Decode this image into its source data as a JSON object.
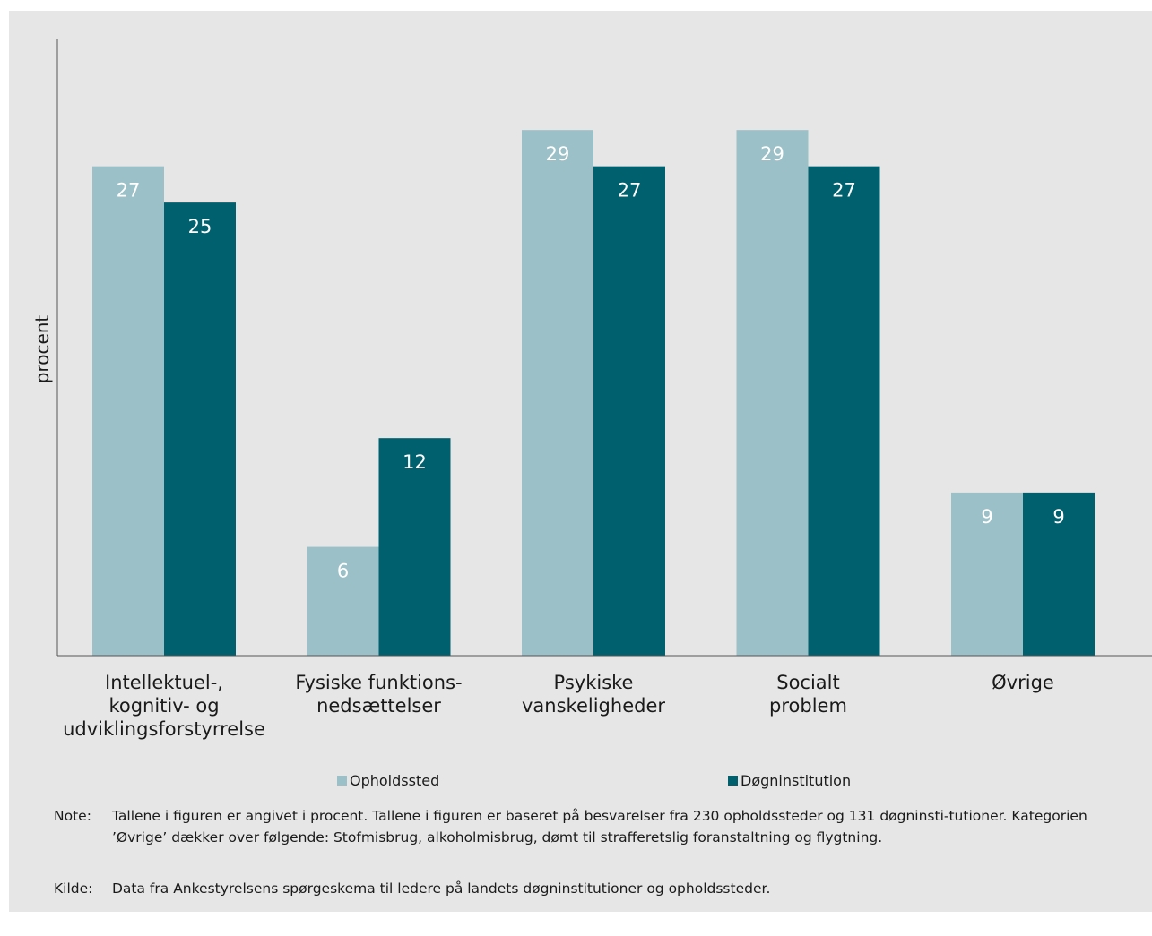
{
  "chart_data": {
    "type": "bar",
    "ylabel": "procent",
    "categories": [
      [
        "Intellektuel-,",
        "kognitiv- og",
        "udviklingsforstyrrelse"
      ],
      [
        "Fysiske funktions-",
        "nedsættelser"
      ],
      [
        "Psykiske",
        "vanskeligheder"
      ],
      [
        "Socialt",
        "problem"
      ],
      [
        "Øvrige"
      ]
    ],
    "series": [
      {
        "name": "Opholdssted",
        "color": "#9bc0c7",
        "values": [
          27,
          6,
          29,
          29,
          9
        ]
      },
      {
        "name": "Døgninstitution",
        "color": "#00606e",
        "values": [
          25,
          12,
          27,
          27,
          9
        ]
      }
    ],
    "grid": false,
    "legend": "bottom"
  },
  "footnotes": [
    {
      "label": "Note:",
      "text": "Tallene i figuren er angivet i procent. Tallene i figuren er baseret på besvarelser fra 230 opholdssteder og 131 døgninsti-tutioner. Kategorien ’Øvrige’ dækker over følgende: Stofmisbrug, alkoholmisbrug, dømt til strafferetslig foranstaltning og flygtning."
    },
    {
      "label": "Kilde:",
      "text": "Data fra Ankestyrelsens spørgeskema til ledere på landets døgninstitutioner og opholdssteder."
    }
  ]
}
